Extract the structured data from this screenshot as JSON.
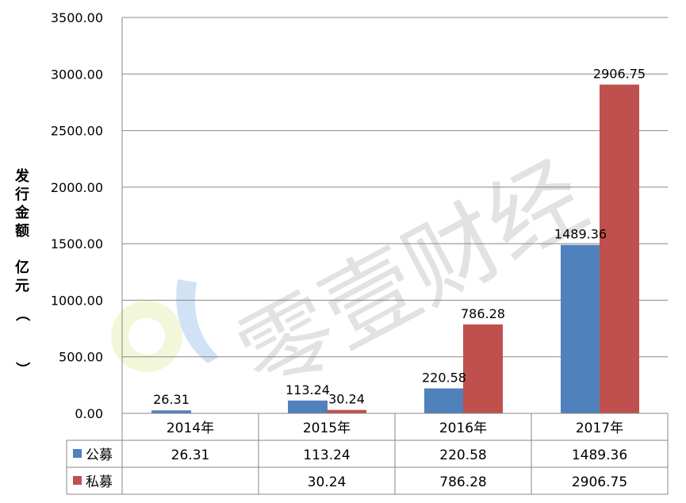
{
  "chart_data": {
    "type": "bar",
    "ylabel": "发行金额（亿元）",
    "categories": [
      "2014年",
      "2015年",
      "2016年",
      "2017年"
    ],
    "series": [
      {
        "name": "公募",
        "color": "#4F81BD",
        "values": [
          26.31,
          113.24,
          220.58,
          1489.36
        ],
        "labels": [
          "26.31",
          "113.24",
          "220.58",
          "1489.36"
        ]
      },
      {
        "name": "私募",
        "color": "#C0504D",
        "values": [
          null,
          30.24,
          786.28,
          2906.75
        ],
        "labels": [
          "",
          "30.24",
          "786.28",
          "2906.75"
        ]
      }
    ],
    "ylim": [
      0,
      3500
    ],
    "yticks": [
      "0.00",
      "500.00",
      "1000.00",
      "1500.00",
      "2000.00",
      "2500.00",
      "3000.00",
      "3500.00"
    ],
    "grid": true,
    "legend": "data-table"
  },
  "watermark": {
    "text": "零壹财经"
  }
}
